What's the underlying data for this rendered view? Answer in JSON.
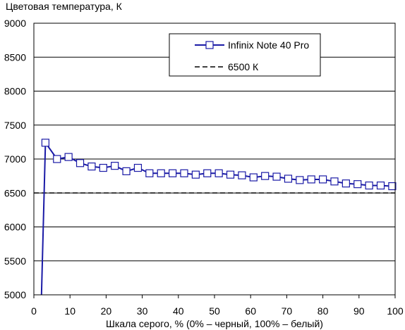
{
  "chart_data": {
    "type": "line",
    "title": "Цветовая температура, К",
    "xlabel": "Шкала серого, % (0% – черный, 100% – белый)",
    "ylabel": "",
    "xlim": [
      0,
      100
    ],
    "ylim": [
      5000,
      9000
    ],
    "x_ticks": [
      "0",
      "10",
      "20",
      "30",
      "40",
      "50",
      "60",
      "70",
      "80",
      "90",
      "100"
    ],
    "y_ticks": [
      "5000",
      "5500",
      "6000",
      "6500",
      "7000",
      "7500",
      "8000",
      "8500",
      "9000"
    ],
    "grid": "horizontal",
    "legend_position": "top-right",
    "colors": {
      "series": "#1a1aa6",
      "reference": "#000000",
      "grid": "#000000"
    },
    "series": [
      {
        "name": "Infinix Note 40 Pro",
        "marker": "square",
        "x": [
          2.1,
          3.2,
          6.4,
          9.6,
          12.8,
          16.0,
          19.2,
          22.4,
          25.6,
          28.8,
          32.0,
          35.2,
          38.4,
          41.6,
          44.8,
          48.0,
          51.2,
          54.4,
          57.6,
          60.8,
          64.0,
          67.2,
          70.4,
          73.6,
          76.8,
          80.0,
          83.2,
          86.4,
          89.6,
          92.8,
          96.0,
          99.2
        ],
        "values": [
          5000,
          7240,
          7000,
          7030,
          6940,
          6890,
          6870,
          6900,
          6820,
          6870,
          6790,
          6790,
          6790,
          6790,
          6770,
          6790,
          6790,
          6770,
          6760,
          6730,
          6750,
          6740,
          6710,
          6690,
          6700,
          6700,
          6670,
          6640,
          6630,
          6610,
          6610,
          6600
        ],
        "marked": [
          false,
          true,
          true,
          true,
          true,
          true,
          true,
          true,
          true,
          true,
          true,
          true,
          true,
          true,
          true,
          true,
          true,
          true,
          true,
          true,
          true,
          true,
          true,
          true,
          true,
          true,
          true,
          true,
          true,
          true,
          true,
          true
        ]
      },
      {
        "name": "6500 К",
        "style": "dashed",
        "x": [
          0,
          100
        ],
        "values": [
          6500,
          6500
        ]
      }
    ]
  }
}
